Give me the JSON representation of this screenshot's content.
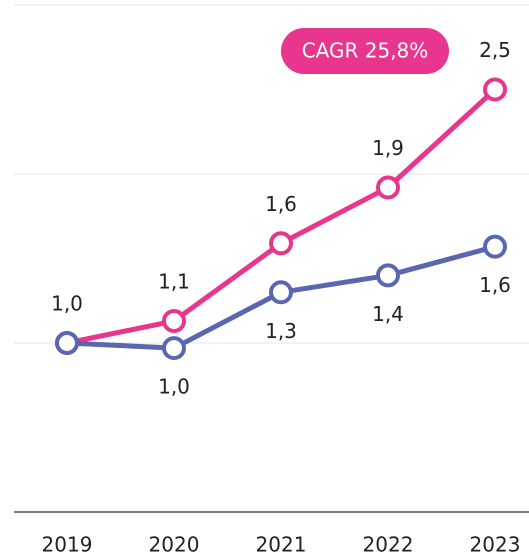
{
  "chart_data": {
    "type": "line",
    "categories": [
      "2019",
      "2020",
      "2021",
      "2022",
      "2023"
    ],
    "series": [
      {
        "color": "#e8368f",
        "values": [
          1.0,
          1.13,
          1.59,
          1.92,
          2.5
        ],
        "value_labels": [
          "1,0",
          "1,1",
          "1,6",
          "1,9",
          "2,5"
        ]
      },
      {
        "color": "#5a67b0",
        "values": [
          1.0,
          0.97,
          1.3,
          1.4,
          1.57
        ],
        "value_labels": [
          null,
          "1,0",
          "1,3",
          "1,4",
          "1,6"
        ]
      }
    ],
    "annotation": "CAGR 25,8%",
    "ylim": [
      0,
      3
    ],
    "yticks": [
      0,
      1,
      2,
      3
    ],
    "grid": true
  }
}
